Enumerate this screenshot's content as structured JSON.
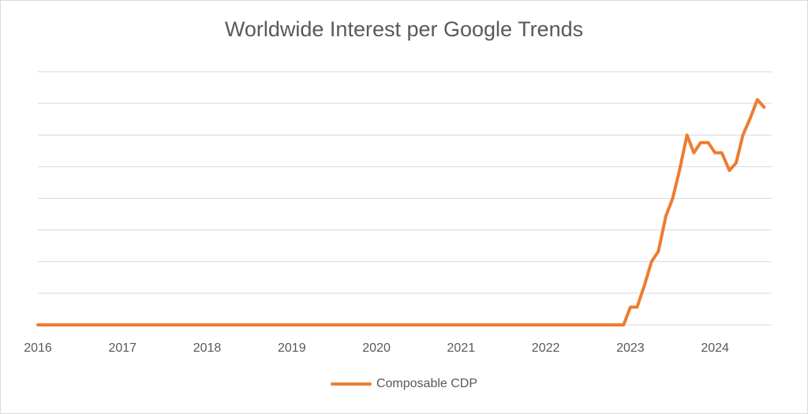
{
  "chart_data": {
    "type": "line",
    "title": "Worldwide Interest per Google Trends",
    "xlabel": "",
    "ylabel": "",
    "x_ticks": [
      "2016",
      "2017",
      "2018",
      "2019",
      "2020",
      "2021",
      "2022",
      "2023",
      "2024"
    ],
    "xlim": [
      2016,
      2024.67
    ],
    "ylim": [
      0,
      100
    ],
    "y_tick_labels_shown": false,
    "grid": true,
    "legend_position": "bottom",
    "series": [
      {
        "name": "Composable CDP",
        "color": "#ED7D31",
        "x": [
          2016,
          2022.92,
          2023.0,
          2023.08,
          2023.17,
          2023.25,
          2023.33,
          2023.42,
          2023.5,
          2023.58,
          2023.67,
          2023.75,
          2023.83,
          2023.92,
          2024.0,
          2024.08,
          2024.17,
          2024.25,
          2024.33,
          2024.42,
          2024.5,
          2024.58
        ],
        "y": [
          0,
          0,
          7,
          7,
          16,
          25,
          29,
          43,
          50,
          61,
          75,
          68,
          72,
          72,
          68,
          68,
          61,
          64,
          75,
          82,
          89,
          86
        ]
      }
    ]
  }
}
